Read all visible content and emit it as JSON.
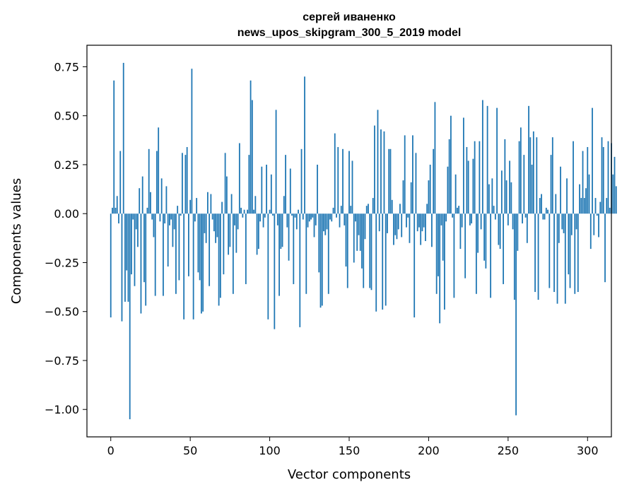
{
  "chart_data": {
    "type": "bar",
    "title": "сергей иваненко",
    "subtitle": "news_upos_skipgram_300_5_2019 model",
    "xlabel": "Vector components",
    "ylabel": "Components values",
    "xlim": [
      -15,
      315
    ],
    "ylim": [
      -1.14,
      0.86
    ],
    "xticks": [
      0,
      50,
      100,
      150,
      200,
      250,
      300
    ],
    "xtick_labels": [
      "0",
      "50",
      "100",
      "150",
      "200",
      "250",
      "300"
    ],
    "yticks": [
      0.75,
      0.5,
      0.25,
      0.0,
      -0.25,
      -0.5,
      -0.75,
      -1.0
    ],
    "ytick_labels": [
      "0.75",
      "0.50",
      "0.25",
      "0.00",
      "−0.25",
      "−0.50",
      "−0.75",
      "−1.00"
    ],
    "grid": false,
    "color": "#1f77b4",
    "x_start": 0,
    "values": [
      -0.53,
      0.03,
      0.68,
      0.03,
      0.09,
      -0.05,
      0.32,
      -0.55,
      0.77,
      -0.45,
      -0.29,
      -0.45,
      -1.05,
      -0.31,
      -0.03,
      -0.37,
      -0.08,
      -0.17,
      0.13,
      -0.51,
      0.19,
      -0.35,
      -0.47,
      0.03,
      0.33,
      0.11,
      -0.03,
      -0.12,
      -0.42,
      0.32,
      0.44,
      -0.04,
      0.18,
      -0.42,
      -0.05,
      0.14,
      -0.27,
      -0.06,
      -0.03,
      -0.17,
      -0.08,
      -0.41,
      0.04,
      -0.34,
      -0.01,
      0.31,
      -0.54,
      0.3,
      0.34,
      -0.32,
      0.07,
      0.74,
      -0.54,
      -0.04,
      0.08,
      -0.3,
      -0.34,
      -0.51,
      -0.5,
      -0.1,
      -0.15,
      0.11,
      -0.37,
      0.1,
      -0.03,
      -0.09,
      -0.15,
      -0.12,
      -0.47,
      -0.43,
      0.06,
      -0.31,
      0.31,
      0.19,
      -0.21,
      -0.17,
      0.1,
      -0.41,
      -0.06,
      -0.2,
      -0.08,
      0.36,
      0.03,
      -0.02,
      0.02,
      -0.36,
      0.02,
      0.3,
      0.68,
      0.58,
      0.02,
      0.09,
      -0.21,
      -0.18,
      -0.04,
      0.24,
      -0.07,
      -0.02,
      0.25,
      -0.54,
      0.02,
      0.2,
      -0.01,
      -0.59,
      0.53,
      -0.06,
      -0.42,
      -0.18,
      -0.17,
      0.09,
      0.3,
      -0.07,
      -0.24,
      0.23,
      -0.01,
      -0.36,
      -0.02,
      -0.08,
      0.02,
      -0.58,
      0.33,
      -0.03,
      0.7,
      -0.41,
      -0.07,
      -0.04,
      -0.03,
      -0.02,
      -0.12,
      -0.06,
      0.25,
      -0.3,
      -0.48,
      -0.47,
      -0.09,
      -0.11,
      -0.08,
      -0.41,
      -0.03,
      -0.04,
      0.03,
      0.41,
      -0.02,
      0.34,
      -0.07,
      0.04,
      0.33,
      -0.06,
      -0.27,
      -0.38,
      0.32,
      0.04,
      0.27,
      -0.25,
      -0.04,
      -0.19,
      -0.11,
      -0.19,
      -0.28,
      -0.38,
      -0.13,
      0.04,
      0.05,
      -0.38,
      -0.39,
      0.08,
      0.45,
      -0.5,
      0.53,
      -0.09,
      0.43,
      -0.49,
      0.42,
      -0.47,
      -0.1,
      0.33,
      0.33,
      0.07,
      -0.16,
      -0.11,
      -0.13,
      -0.08,
      0.05,
      -0.12,
      0.17,
      0.4,
      -0.07,
      -0.02,
      -0.15,
      0.16,
      0.4,
      -0.53,
      0.31,
      -0.09,
      -0.07,
      -0.16,
      -0.09,
      -0.07,
      -0.14,
      0.05,
      0.17,
      0.25,
      -0.17,
      0.33,
      0.57,
      -0.41,
      -0.32,
      -0.56,
      -0.06,
      -0.24,
      -0.49,
      -0.04,
      0.24,
      0.38,
      0.5,
      -0.02,
      -0.43,
      0.2,
      0.03,
      0.04,
      -0.18,
      -0.07,
      0.49,
      -0.33,
      0.34,
      0.27,
      -0.06,
      -0.05,
      0.28,
      0.37,
      -0.41,
      -0.2,
      0.37,
      -0.08,
      0.58,
      -0.24,
      -0.28,
      0.55,
      0.15,
      -0.43,
      0.18,
      0.04,
      -0.03,
      0.54,
      -0.16,
      -0.18,
      0.22,
      -0.36,
      0.38,
      0.17,
      -0.06,
      0.27,
      0.16,
      -0.08,
      -0.44,
      -1.03,
      -0.19,
      0.37,
      0.44,
      -0.05,
      0.3,
      -0.02,
      -0.15,
      0.55,
      0.39,
      0.25,
      0.42,
      -0.4,
      0.39,
      -0.44,
      0.08,
      0.1,
      -0.03,
      -0.03,
      0.03,
      0.02,
      -0.38,
      0.3,
      0.39,
      -0.4,
      0.1,
      -0.46,
      -0.15,
      0.24,
      -0.08,
      -0.1,
      -0.46,
      0.18,
      -0.31,
      -0.38,
      -0.11,
      0.37,
      -0.41,
      -0.08,
      -0.4,
      0.15,
      0.08,
      0.32,
      0.08,
      0.13,
      0.34,
      0.2,
      -0.18,
      0.54,
      -0.11,
      0.08,
      -0.01,
      -0.12,
      0.06,
      0.39,
      0.34,
      -0.35,
      0.08,
      0.37,
      0.03,
      0.36,
      0.2,
      0.29,
      0.14
    ]
  }
}
